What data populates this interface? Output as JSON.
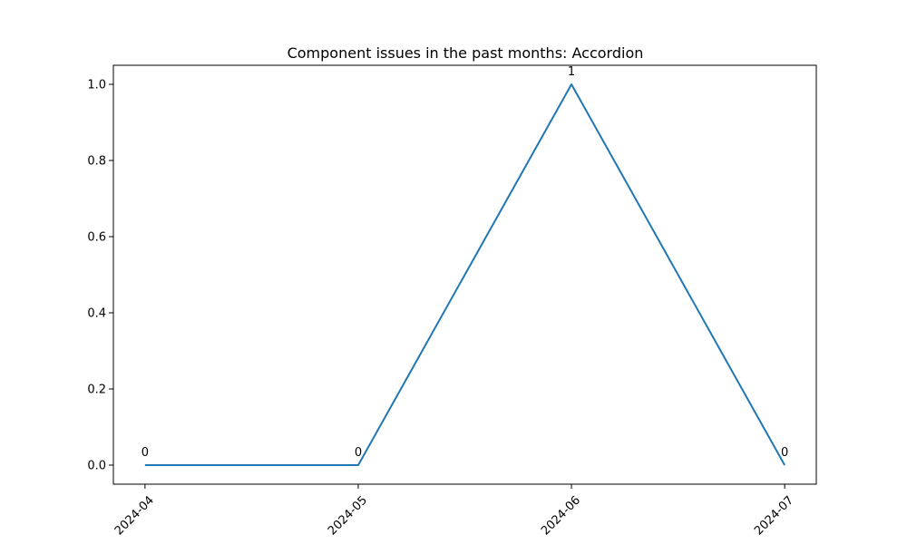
{
  "chart_data": {
    "type": "line",
    "title": "Component issues in the past months: Accordion",
    "xlabel": "",
    "ylabel": "",
    "x": [
      "2024-04",
      "2024-05",
      "2024-06",
      "2024-07"
    ],
    "series": [
      {
        "values": [
          0,
          0,
          1,
          0
        ],
        "color": "#1f77b4"
      }
    ],
    "data_labels": [
      "0",
      "0",
      "1",
      "0"
    ],
    "y_ticks": [
      0.0,
      0.2,
      0.4,
      0.6,
      0.8,
      1.0
    ],
    "y_tick_labels": [
      "0.0",
      "0.2",
      "0.4",
      "0.6",
      "0.8",
      "1.0"
    ],
    "ylim": [
      -0.05,
      1.05
    ],
    "grid": false,
    "x_tick_rotation_deg": 45
  }
}
